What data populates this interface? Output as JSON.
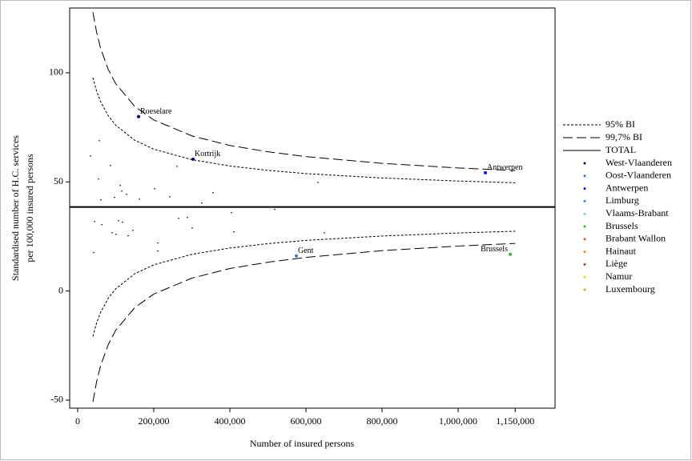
{
  "chart_data": {
    "type": "scatter",
    "x_label": "Number of insured persons",
    "y_label": [
      "Standardised number of H.C. services",
      "per 100,000 insured persons"
    ],
    "xlim": [
      -21000,
      1254700
    ],
    "ylim": [
      -53.7,
      129.7
    ],
    "xticks": [
      0,
      {
        "value": 200000,
        "label": "200,000"
      },
      {
        "value": 400000,
        "label": "400,000"
      },
      {
        "value": 600000,
        "label": "600,000"
      },
      {
        "value": 800000,
        "label": "800,000"
      },
      {
        "value": 1000000,
        "label": "1,000,000"
      },
      {
        "value": 1150000,
        "label": "1,150,000"
      }
    ],
    "yticks": [
      -50,
      0,
      50,
      100
    ],
    "total": {
      "name": "TOTAL",
      "value": 38.5
    },
    "bands": {
      "x": [
        40000,
        50000,
        60000,
        80000,
        100000,
        150000,
        200000,
        300000,
        400000,
        500000,
        600000,
        800000,
        1000000,
        1150000
      ],
      "series": [
        {
          "name": "95% BI",
          "dash": "3,2",
          "upper": [
            97.8,
            91.5,
            86.9,
            80.4,
            76.0,
            69.1,
            65.0,
            60.2,
            57.3,
            55.3,
            53.8,
            51.8,
            50.4,
            49.6
          ],
          "lower": [
            -20.8,
            -14.5,
            -9.9,
            -3.4,
            1.0,
            7.9,
            12.0,
            16.8,
            19.7,
            21.7,
            23.2,
            25.2,
            26.6,
            27.4
          ]
        },
        {
          "name": "99,7% BI",
          "dash": "12,5",
          "upper": [
            127.8,
            118.4,
            111.4,
            101.7,
            95.0,
            84.6,
            78.4,
            71.1,
            66.7,
            63.8,
            61.6,
            58.5,
            56.4,
            55.2
          ],
          "lower": [
            -50.8,
            -41.4,
            -34.4,
            -24.7,
            -18.0,
            -7.6,
            -1.4,
            5.9,
            10.3,
            13.2,
            15.4,
            18.5,
            20.6,
            21.8
          ]
        }
      ]
    },
    "groups": [
      {
        "name": "West-Vlaanderen",
        "color": "#00007f"
      },
      {
        "name": "Oost-Vlaanderen",
        "color": "#3a78d8"
      },
      {
        "name": "Antwerpen",
        "color": "#0000ff"
      },
      {
        "name": "Limburg",
        "color": "#1e90ff"
      },
      {
        "name": "Vlaams-Brabant",
        "color": "#66d0e0"
      },
      {
        "name": "Brussels",
        "color": "#2eb82e"
      },
      {
        "name": "Brabant Wallon",
        "color": "#d2691e"
      },
      {
        "name": "Hainaut",
        "color": "#ff8c00"
      },
      {
        "name": "Liège",
        "color": "#b04020"
      },
      {
        "name": "Namur",
        "color": "#ffd700"
      },
      {
        "name": "Luxembourg",
        "color": "#daa520"
      }
    ],
    "points": [
      {
        "x": 160000,
        "y": 79.9,
        "group": 0,
        "label": "Roeselare"
      },
      {
        "x": 303200,
        "y": 60.4,
        "group": 0,
        "label": "Kortrijk"
      },
      {
        "x": 1071600,
        "y": 54.2,
        "group": 2,
        "label": "Antwerpen"
      },
      {
        "x": 574700,
        "y": 16.1,
        "group": 1,
        "label": "Gent"
      },
      {
        "x": 1136800,
        "y": 16.8,
        "group": 5,
        "label": "Brussels"
      },
      {
        "x": 33700,
        "y": 61.9
      },
      {
        "x": 56800,
        "y": 68.9
      },
      {
        "x": 54700,
        "y": 51.3
      },
      {
        "x": 61000,
        "y": 41.8
      },
      {
        "x": 86300,
        "y": 57.5
      },
      {
        "x": 96800,
        "y": 42.9
      },
      {
        "x": 111600,
        "y": 48.4
      },
      {
        "x": 115800,
        "y": 45.8
      },
      {
        "x": 128400,
        "y": 44.3
      },
      {
        "x": 162100,
        "y": 42.1
      },
      {
        "x": 202100,
        "y": 46.9
      },
      {
        "x": 242100,
        "y": 43.2
      },
      {
        "x": 261000,
        "y": 57.1
      },
      {
        "x": 355800,
        "y": 45.1
      },
      {
        "x": 44200,
        "y": 31.9
      },
      {
        "x": 63200,
        "y": 30.4
      },
      {
        "x": 90500,
        "y": 26.7
      },
      {
        "x": 101000,
        "y": 26.0
      },
      {
        "x": 107400,
        "y": 32.2
      },
      {
        "x": 117900,
        "y": 31.5
      },
      {
        "x": 132600,
        "y": 25.3
      },
      {
        "x": 145300,
        "y": 27.8
      },
      {
        "x": 210500,
        "y": 22.0
      },
      {
        "x": 210500,
        "y": 18.3
      },
      {
        "x": 265300,
        "y": 33.3
      },
      {
        "x": 288400,
        "y": 33.7
      },
      {
        "x": 301100,
        "y": 28.9
      },
      {
        "x": 326300,
        "y": 40.3
      },
      {
        "x": 404200,
        "y": 35.9
      },
      {
        "x": 410500,
        "y": 27.1
      },
      {
        "x": 517900,
        "y": 37.4
      },
      {
        "x": 648400,
        "y": 26.7
      },
      {
        "x": 631600,
        "y": 49.8
      },
      {
        "x": 42100,
        "y": 17.6
      }
    ]
  }
}
